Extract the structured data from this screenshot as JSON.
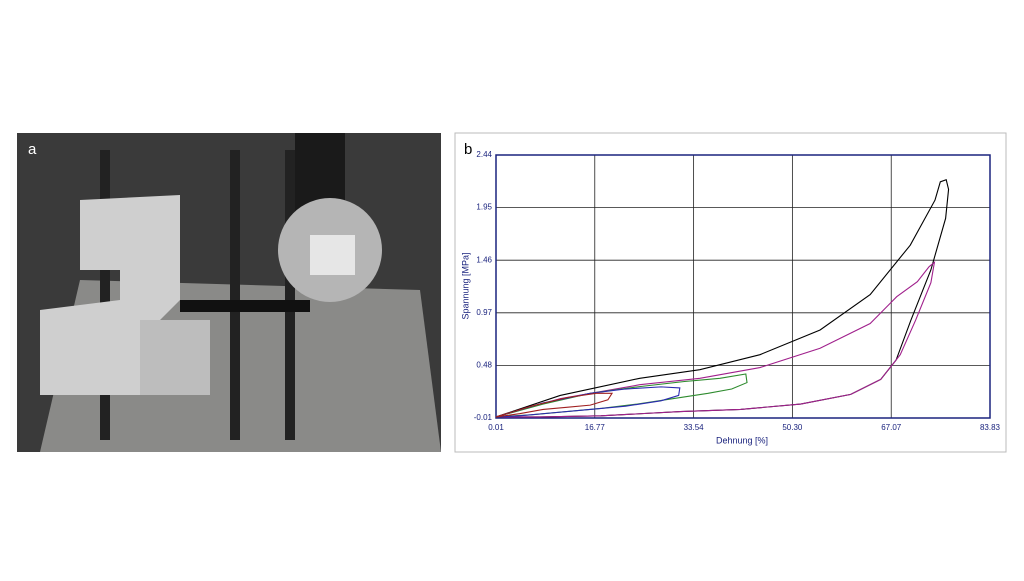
{
  "photo": {
    "label": "a"
  },
  "chart_data": {
    "type": "line",
    "panel_label": "b",
    "x_label": "Dehnung [%]",
    "y_label": "Spannung [MPa]",
    "xlim": [
      0.01,
      83.83
    ],
    "ylim": [
      -0.01,
      2.44
    ],
    "xticks": [
      0.01,
      16.77,
      33.54,
      {
        "value": 50.3,
        "label": "50.30"
      },
      67.07,
      83.83
    ],
    "yticks": [
      -0.01,
      0.48,
      0.97,
      1.46,
      1.95,
      2.44
    ],
    "grid": true,
    "series": [
      {
        "color": "#000000",
        "x": [
          0,
          10.9,
          24.4,
          34.6,
          44.8,
          55.0,
          63.5,
          70.3,
          74.5,
          75.4,
          76.4,
          76.8,
          76.3,
          73.8,
          70.4,
          67.9,
          65.3,
          60.2,
          51.7,
          41.5,
          31.3,
          17.8,
          7.6,
          0
        ],
        "values": [
          0,
          0.2,
          0.36,
          0.44,
          0.58,
          0.81,
          1.14,
          1.6,
          2.02,
          2.19,
          2.21,
          2.12,
          1.85,
          1.37,
          0.9,
          0.53,
          0.35,
          0.21,
          0.12,
          0.07,
          0.05,
          0.01,
          0,
          0
        ]
      },
      {
        "color": "#a0208c",
        "x": [
          0,
          10.9,
          24.4,
          34.6,
          44.8,
          55.0,
          63.5,
          68.0,
          71.5,
          73.5,
          74.4,
          73.8,
          71.2,
          68.6,
          65.3,
          60.2,
          51.7,
          41.5,
          31.3,
          17.8,
          7.6,
          0
        ],
        "values": [
          0,
          0.17,
          0.3,
          0.36,
          0.46,
          0.64,
          0.87,
          1.12,
          1.26,
          1.4,
          1.44,
          1.25,
          0.9,
          0.58,
          0.35,
          0.21,
          0.12,
          0.07,
          0.05,
          0.01,
          0,
          0
        ]
      },
      {
        "color": "#2e8b2e",
        "x": [
          0,
          8,
          16,
          24,
          32,
          38,
          42.4,
          42.6,
          40,
          36,
          30,
          24,
          18,
          12,
          6,
          0
        ],
        "values": [
          0,
          0.12,
          0.22,
          0.28,
          0.33,
          0.36,
          0.4,
          0.32,
          0.26,
          0.22,
          0.17,
          0.12,
          0.08,
          0.05,
          0.02,
          0
        ]
      },
      {
        "color": "#2a2ab0",
        "x": [
          0,
          8,
          16,
          22,
          28,
          31.2,
          31,
          28,
          22,
          16,
          10,
          4,
          0
        ],
        "values": [
          0,
          0.13,
          0.22,
          0.26,
          0.28,
          0.27,
          0.2,
          0.15,
          0.1,
          0.07,
          0.04,
          0.01,
          0
        ]
      },
      {
        "color": "#a02020",
        "x": [
          0,
          6,
          12,
          17,
          19.7,
          19,
          16,
          12,
          8,
          4,
          0
        ],
        "values": [
          0,
          0.1,
          0.18,
          0.22,
          0.22,
          0.16,
          0.11,
          0.09,
          0.07,
          0.03,
          0
        ]
      }
    ]
  }
}
